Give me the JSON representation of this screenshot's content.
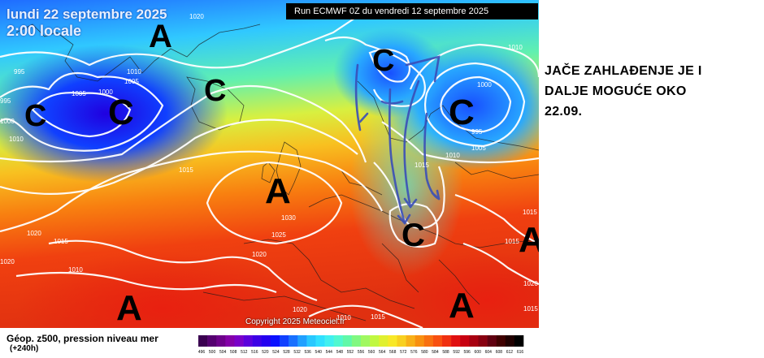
{
  "map": {
    "date_label": "lundi 22 septembre 2025",
    "time_label": "2:00 locale",
    "run_label": "Run ECMWF 0Z du vendredi 12 septembre 2025",
    "copyright": "Copyright 2025 Meteociel.fr",
    "pressure_centers": [
      {
        "symbol": "A",
        "name": "high-north"
      },
      {
        "symbol": "C",
        "name": "low-northwest"
      },
      {
        "symbol": "C",
        "name": "low-west-center"
      },
      {
        "symbol": "C",
        "name": "low-greenland"
      },
      {
        "symbol": "C",
        "name": "low-norway"
      },
      {
        "symbol": "C",
        "name": "low-northeast"
      },
      {
        "symbol": "A",
        "name": "high-central"
      },
      {
        "symbol": "C",
        "name": "low-balkans"
      },
      {
        "symbol": "A",
        "name": "high-east-edge"
      },
      {
        "symbol": "A",
        "name": "high-southwest"
      },
      {
        "symbol": "A",
        "name": "high-southeast"
      }
    ],
    "isobar_labels": [
      "1020",
      "995",
      "1010",
      "1005",
      "1005",
      "1000",
      "995",
      "1000",
      "1010",
      "1000",
      "995",
      "1005",
      "1010",
      "1015",
      "1015",
      "1030",
      "1025",
      "1020",
      "1020",
      "1015",
      "1010",
      "1020",
      "1020",
      "1015",
      "1010",
      "1015",
      "1015",
      "1020",
      "1015",
      "1010"
    ]
  },
  "legend": {
    "title": "Géop. z500, pression niveau mer",
    "subtitle": "(+240h)",
    "scale_colors": [
      "#3a0050",
      "#550070",
      "#6d008a",
      "#8400a8",
      "#7a00c8",
      "#5b00dc",
      "#3c00e6",
      "#2400f0",
      "#0a10ff",
      "#1040ff",
      "#1870ff",
      "#20a0ff",
      "#28c8ff",
      "#30e0ff",
      "#40f0f0",
      "#50f8d0",
      "#60f8a8",
      "#80f880",
      "#a0f860",
      "#c0f840",
      "#e0f030",
      "#f8e828",
      "#f8d020",
      "#f8b018",
      "#f89010",
      "#f87010",
      "#f85010",
      "#f03010",
      "#e01010",
      "#c80010",
      "#a80010",
      "#880010",
      "#600010",
      "#400000",
      "#200000",
      "#000000"
    ],
    "scale_values": [
      "496",
      "500",
      "504",
      "508",
      "512",
      "516",
      "520",
      "524",
      "528",
      "532",
      "536",
      "540",
      "544",
      "548",
      "552",
      "556",
      "560",
      "564",
      "568",
      "572",
      "576",
      "580",
      "584",
      "588",
      "592",
      "596",
      "600",
      "604",
      "608",
      "612",
      "616"
    ]
  },
  "annotation": {
    "line1": "JAČE ZAHLAĐENJE JE I",
    "line2": "DALJE MOGUĆE OKO",
    "line3": "22.09."
  }
}
